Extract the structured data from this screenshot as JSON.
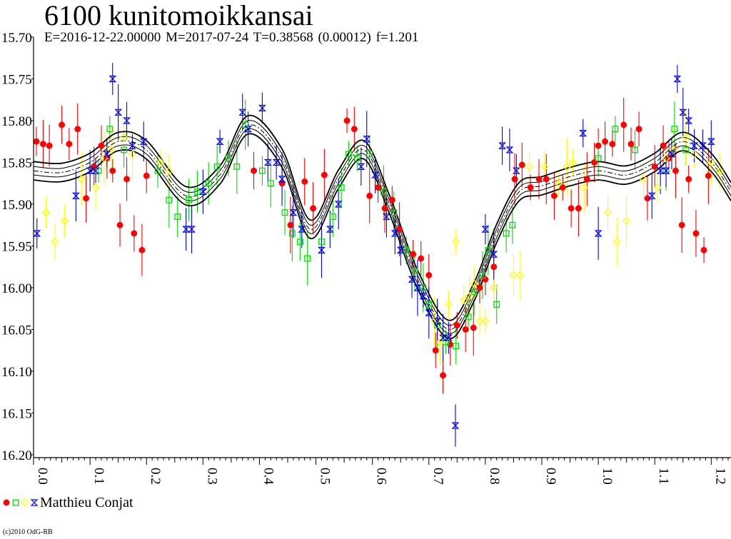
{
  "title": "6100 kunitomoikkansai",
  "subtitle": "E=2016-12-22.00000    M=2017-07-24    T=0.38568 (0.00012)    f=1.201",
  "legend": {
    "observer": "Matthieu Conjat"
  },
  "copyright": "(c)2010 OdG-RB",
  "chart_data": {
    "type": "scatter",
    "title": "6100 kunitomoikkansai",
    "xlim": [
      0.0,
      1.235
    ],
    "ylim": [
      15.7,
      16.2
    ],
    "y_inverted": true,
    "x_ticks": [
      "0.0",
      "0.1",
      "0.2",
      "0.3",
      "0.4",
      "0.5",
      "0.6",
      "0.7",
      "0.8",
      "0.9",
      "1.0",
      "1.1",
      "1.2"
    ],
    "y_ticks": [
      "15.70",
      "15.75",
      "15.80",
      "15.85",
      "15.90",
      "15.95",
      "16.00",
      "16.05",
      "16.10",
      "16.15",
      "16.20"
    ],
    "colors": {
      "red": "#ff0000",
      "green": "#00dd00",
      "yellow": "#ffff00",
      "blue": "#0000ff",
      "black": "#000000"
    },
    "fit_curve": {
      "x": [
        0.0,
        0.05,
        0.1,
        0.15,
        0.2,
        0.27,
        0.33,
        0.38,
        0.44,
        0.49,
        0.54,
        0.585,
        0.63,
        0.68,
        0.735,
        0.78,
        0.82,
        0.86,
        0.9,
        0.95,
        1.0,
        1.05,
        1.1,
        1.15,
        1.2,
        1.235
      ],
      "y": [
        15.86,
        15.862,
        15.85,
        15.825,
        15.835,
        15.89,
        15.865,
        15.805,
        15.845,
        15.93,
        15.87,
        15.835,
        15.9,
        15.99,
        16.05,
        16.005,
        15.935,
        15.885,
        15.878,
        15.867,
        15.86,
        15.865,
        15.85,
        15.825,
        15.85,
        15.885
      ],
      "band_inner": 0.005,
      "band_outer": 0.011
    },
    "series": [
      {
        "name": "Matthieu Conjat",
        "marker": "filled-circle",
        "color": "red",
        "points": [
          [
            0.005,
            15.825
          ],
          [
            0.017,
            15.828
          ],
          [
            0.028,
            15.83
          ],
          [
            0.05,
            15.805
          ],
          [
            0.063,
            15.828
          ],
          [
            0.078,
            15.81
          ],
          [
            0.093,
            15.893
          ],
          [
            0.107,
            15.855
          ],
          [
            0.12,
            15.83
          ],
          [
            0.13,
            15.845
          ],
          [
            0.14,
            15.86
          ],
          [
            0.153,
            15.925
          ],
          [
            0.165,
            15.87
          ],
          [
            0.178,
            15.935
          ],
          [
            0.192,
            15.955
          ],
          [
            0.2,
            15.866
          ],
          [
            0.39,
            15.86
          ],
          [
            0.44,
            15.875
          ],
          [
            0.455,
            15.925
          ],
          [
            0.48,
            15.873
          ],
          [
            0.495,
            15.905
          ],
          [
            0.515,
            15.865
          ],
          [
            0.555,
            15.8
          ],
          [
            0.568,
            15.81
          ],
          [
            0.595,
            15.89
          ],
          [
            0.61,
            15.88
          ],
          [
            0.622,
            15.905
          ],
          [
            0.635,
            15.895
          ],
          [
            0.648,
            15.93
          ],
          [
            0.672,
            15.96
          ],
          [
            0.686,
            15.965
          ],
          [
            0.7,
            15.985
          ],
          [
            0.712,
            16.075
          ],
          [
            0.725,
            16.105
          ],
          [
            0.738,
            16.068
          ],
          [
            0.75,
            16.045
          ],
          [
            0.765,
            16.05
          ],
          [
            0.779,
            16.048
          ],
          [
            0.79,
            16.0
          ],
          [
            0.8,
            15.99
          ],
          [
            0.815,
            15.975
          ],
          [
            0.852,
            15.87
          ],
          [
            0.865,
            15.853
          ],
          [
            0.88,
            15.88
          ],
          [
            0.895,
            15.87
          ],
          [
            0.908,
            15.87
          ],
          [
            0.922,
            15.89
          ],
          [
            0.937,
            15.88
          ],
          [
            0.952,
            15.905
          ],
          [
            0.965,
            15.905
          ],
          [
            0.98,
            15.87
          ],
          [
            0.993,
            15.85
          ],
          [
            1.0,
            15.83
          ],
          [
            1.012,
            15.825
          ],
          [
            1.025,
            15.828
          ],
          [
            1.045,
            15.805
          ],
          [
            1.058,
            15.828
          ],
          [
            1.072,
            15.81
          ],
          [
            1.087,
            15.893
          ],
          [
            1.1,
            15.855
          ],
          [
            1.115,
            15.83
          ],
          [
            1.125,
            15.845
          ],
          [
            1.137,
            15.86
          ],
          [
            1.148,
            15.925
          ],
          [
            1.16,
            15.87
          ],
          [
            1.173,
            15.935
          ],
          [
            1.187,
            15.955
          ],
          [
            1.195,
            15.866
          ]
        ]
      },
      {
        "name": "",
        "marker": "open-square",
        "color": "green",
        "points": [
          [
            0.115,
            15.86
          ],
          [
            0.135,
            15.81
          ],
          [
            0.16,
            15.835
          ],
          [
            0.22,
            15.86
          ],
          [
            0.24,
            15.895
          ],
          [
            0.255,
            15.915
          ],
          [
            0.275,
            15.895
          ],
          [
            0.29,
            15.885
          ],
          [
            0.31,
            15.875
          ],
          [
            0.325,
            15.855
          ],
          [
            0.345,
            15.845
          ],
          [
            0.36,
            15.855
          ],
          [
            0.375,
            15.805
          ],
          [
            0.405,
            15.86
          ],
          [
            0.42,
            15.875
          ],
          [
            0.445,
            15.91
          ],
          [
            0.458,
            15.935
          ],
          [
            0.472,
            15.945
          ],
          [
            0.485,
            15.965
          ],
          [
            0.51,
            15.945
          ],
          [
            0.53,
            15.915
          ],
          [
            0.545,
            15.88
          ],
          [
            0.558,
            15.84
          ],
          [
            0.573,
            15.845
          ],
          [
            0.595,
            15.84
          ],
          [
            0.62,
            15.885
          ],
          [
            0.638,
            15.91
          ],
          [
            0.66,
            15.955
          ],
          [
            0.675,
            15.98
          ],
          [
            0.69,
            16.0
          ],
          [
            0.7,
            16.02
          ],
          [
            0.715,
            16.045
          ],
          [
            0.73,
            16.065
          ],
          [
            0.748,
            16.07
          ],
          [
            0.77,
            16.035
          ],
          [
            0.78,
            16.005
          ],
          [
            0.795,
            15.985
          ],
          [
            0.805,
            15.955
          ],
          [
            0.82,
            16.02
          ],
          [
            0.837,
            15.935
          ],
          [
            0.848,
            15.925
          ],
          [
            1.0,
            15.845
          ],
          [
            1.03,
            15.81
          ],
          [
            1.065,
            15.835
          ],
          [
            1.12,
            15.86
          ],
          [
            1.135,
            15.81
          ],
          [
            1.155,
            15.835
          ]
        ]
      },
      {
        "name": "",
        "marker": "open-diamond",
        "color": "yellow",
        "points": [
          [
            0.022,
            15.91
          ],
          [
            0.038,
            15.945
          ],
          [
            0.055,
            15.92
          ],
          [
            0.085,
            15.87
          ],
          [
            0.11,
            15.88
          ],
          [
            0.125,
            15.845
          ],
          [
            0.138,
            15.835
          ],
          [
            0.16,
            15.82
          ],
          [
            0.175,
            15.84
          ],
          [
            0.225,
            15.85
          ],
          [
            0.24,
            15.86
          ],
          [
            0.71,
            16.04
          ],
          [
            0.72,
            16.065
          ],
          [
            0.735,
            16.02
          ],
          [
            0.748,
            15.945
          ],
          [
            0.762,
            16.015
          ],
          [
            0.772,
            16.01
          ],
          [
            0.78,
            15.995
          ],
          [
            0.79,
            16.04
          ],
          [
            0.8,
            16.04
          ],
          [
            0.815,
            16.0
          ],
          [
            0.85,
            15.985
          ],
          [
            0.862,
            15.985
          ],
          [
            0.878,
            15.855
          ],
          [
            0.905,
            15.855
          ],
          [
            0.93,
            15.875
          ],
          [
            0.945,
            15.855
          ],
          [
            0.955,
            15.85
          ],
          [
            0.975,
            15.88
          ],
          [
            1.017,
            15.91
          ],
          [
            1.033,
            15.945
          ],
          [
            1.05,
            15.92
          ],
          [
            1.08,
            15.87
          ],
          [
            1.105,
            15.88
          ],
          [
            1.12,
            15.845
          ],
          [
            1.133,
            15.835
          ],
          [
            1.155,
            15.82
          ],
          [
            1.17,
            15.84
          ],
          [
            1.2,
            15.85
          ],
          [
            1.215,
            15.86
          ]
        ]
      },
      {
        "name": "",
        "marker": "hourglass",
        "color": "blue",
        "points": [
          [
            0.006,
            15.935
          ],
          [
            0.075,
            15.89
          ],
          [
            0.1,
            15.86
          ],
          [
            0.11,
            15.86
          ],
          [
            0.13,
            15.84
          ],
          [
            0.14,
            15.75
          ],
          [
            0.15,
            15.79
          ],
          [
            0.165,
            15.8
          ],
          [
            0.175,
            15.83
          ],
          [
            0.195,
            15.825
          ],
          [
            0.27,
            15.93
          ],
          [
            0.28,
            15.93
          ],
          [
            0.3,
            15.885
          ],
          [
            0.33,
            15.825
          ],
          [
            0.37,
            15.79
          ],
          [
            0.38,
            15.81
          ],
          [
            0.405,
            15.785
          ],
          [
            0.415,
            15.85
          ],
          [
            0.43,
            15.85
          ],
          [
            0.44,
            15.87
          ],
          [
            0.46,
            15.91
          ],
          [
            0.475,
            15.93
          ],
          [
            0.51,
            15.955
          ],
          [
            0.525,
            15.93
          ],
          [
            0.54,
            15.9
          ],
          [
            0.58,
            15.855
          ],
          [
            0.59,
            15.822
          ],
          [
            0.605,
            15.865
          ],
          [
            0.625,
            15.915
          ],
          [
            0.64,
            15.935
          ],
          [
            0.65,
            15.955
          ],
          [
            0.67,
            15.99
          ],
          [
            0.68,
            16.0
          ],
          [
            0.69,
            16.01
          ],
          [
            0.7,
            16.03
          ],
          [
            0.715,
            16.04
          ],
          [
            0.725,
            16.06
          ],
          [
            0.735,
            16.06
          ],
          [
            0.747,
            16.165
          ],
          [
            0.8,
            15.93
          ],
          [
            0.815,
            15.96
          ],
          [
            0.83,
            15.83
          ],
          [
            0.843,
            15.835
          ],
          [
            0.855,
            15.86
          ],
          [
            0.973,
            15.815
          ],
          [
            1.0,
            15.935
          ],
          [
            1.095,
            15.89
          ],
          [
            1.11,
            15.86
          ],
          [
            1.12,
            15.86
          ],
          [
            1.13,
            15.84
          ],
          [
            1.14,
            15.75
          ],
          [
            1.15,
            15.79
          ],
          [
            1.16,
            15.8
          ],
          [
            1.17,
            15.83
          ],
          [
            1.185,
            15.83
          ],
          [
            1.2,
            15.825
          ]
        ]
      }
    ]
  }
}
